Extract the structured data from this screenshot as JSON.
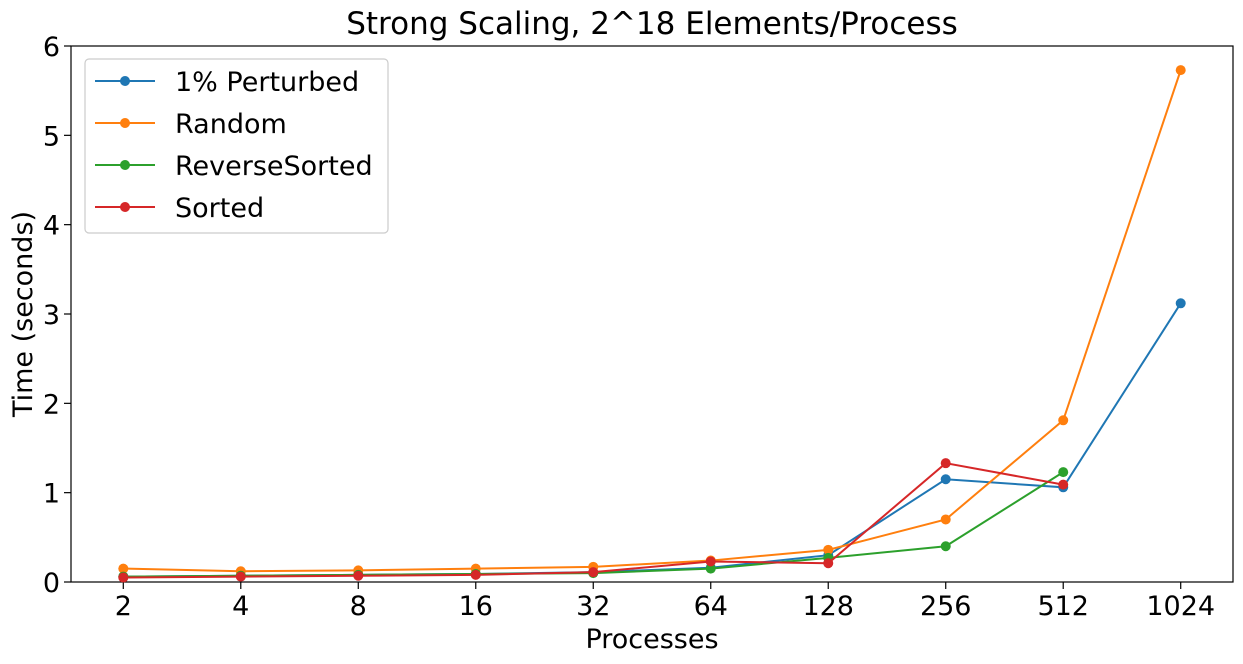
{
  "chart_data": {
    "type": "line",
    "title": "Strong Scaling, 2^18 Elements/Process",
    "xlabel": "Processes",
    "ylabel": "Time (seconds)",
    "categories": [
      "2",
      "4",
      "8",
      "16",
      "32",
      "64",
      "128",
      "256",
      "512",
      "1024"
    ],
    "ylim": [
      0,
      6
    ],
    "yticks": [
      "0",
      "1",
      "2",
      "3",
      "4",
      "5",
      "6"
    ],
    "grid": false,
    "legend_position": "top-left",
    "series": [
      {
        "name": "1% Perturbed",
        "color": "#1f77b4",
        "values": [
          0.06,
          0.07,
          0.08,
          0.09,
          0.11,
          0.16,
          0.3,
          1.15,
          1.06,
          3.12
        ]
      },
      {
        "name": "Random",
        "color": "#ff7f0e",
        "values": [
          0.15,
          0.12,
          0.13,
          0.15,
          0.17,
          0.24,
          0.36,
          0.7,
          1.81,
          5.73
        ]
      },
      {
        "name": "ReverseSorted",
        "color": "#2ca02c",
        "values": [
          0.06,
          0.07,
          0.08,
          0.09,
          0.1,
          0.15,
          0.27,
          0.4,
          1.23,
          null
        ]
      },
      {
        "name": "Sorted",
        "color": "#d62728",
        "values": [
          0.05,
          0.06,
          0.07,
          0.08,
          0.11,
          0.23,
          0.21,
          1.33,
          1.09,
          null
        ]
      }
    ]
  }
}
